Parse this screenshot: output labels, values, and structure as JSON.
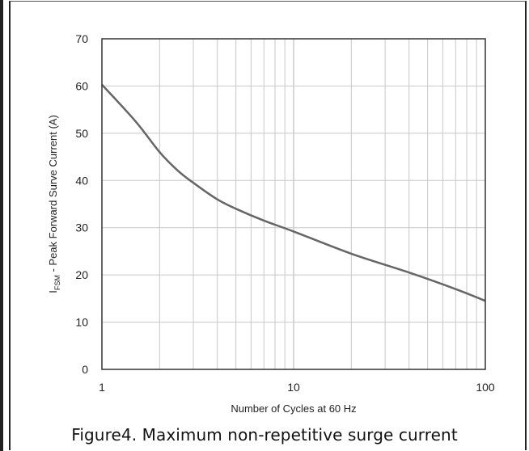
{
  "caption": "Figure4. Maximum non-repetitive surge current",
  "chart_data": {
    "type": "line",
    "xscale": "log",
    "xlim": [
      1,
      100
    ],
    "ylim": [
      0,
      70
    ],
    "xticks": [
      1,
      10,
      100
    ],
    "xtick_labels": [
      "1",
      "10",
      "100"
    ],
    "yticks": [
      0,
      10,
      20,
      30,
      40,
      50,
      60,
      70
    ],
    "ytick_labels": [
      "0",
      "10",
      "20",
      "30",
      "40",
      "50",
      "60",
      "70"
    ],
    "xlabel": "Number of Cycles at 60 Hz",
    "ylabel_main": "I",
    "ylabel_sub": "FSM",
    "ylabel_rest": "  - Peak Forward Surve Current (A)",
    "grid": true,
    "series": [
      {
        "color": "#666666",
        "x": [
          1,
          1.5,
          2,
          2.5,
          3,
          4,
          5,
          7,
          10,
          20,
          40,
          70,
          100
        ],
        "y": [
          60.3,
          52.5,
          46,
          42,
          39.5,
          36,
          34,
          31.5,
          29.2,
          24.5,
          20.5,
          17,
          14.5
        ]
      }
    ]
  }
}
